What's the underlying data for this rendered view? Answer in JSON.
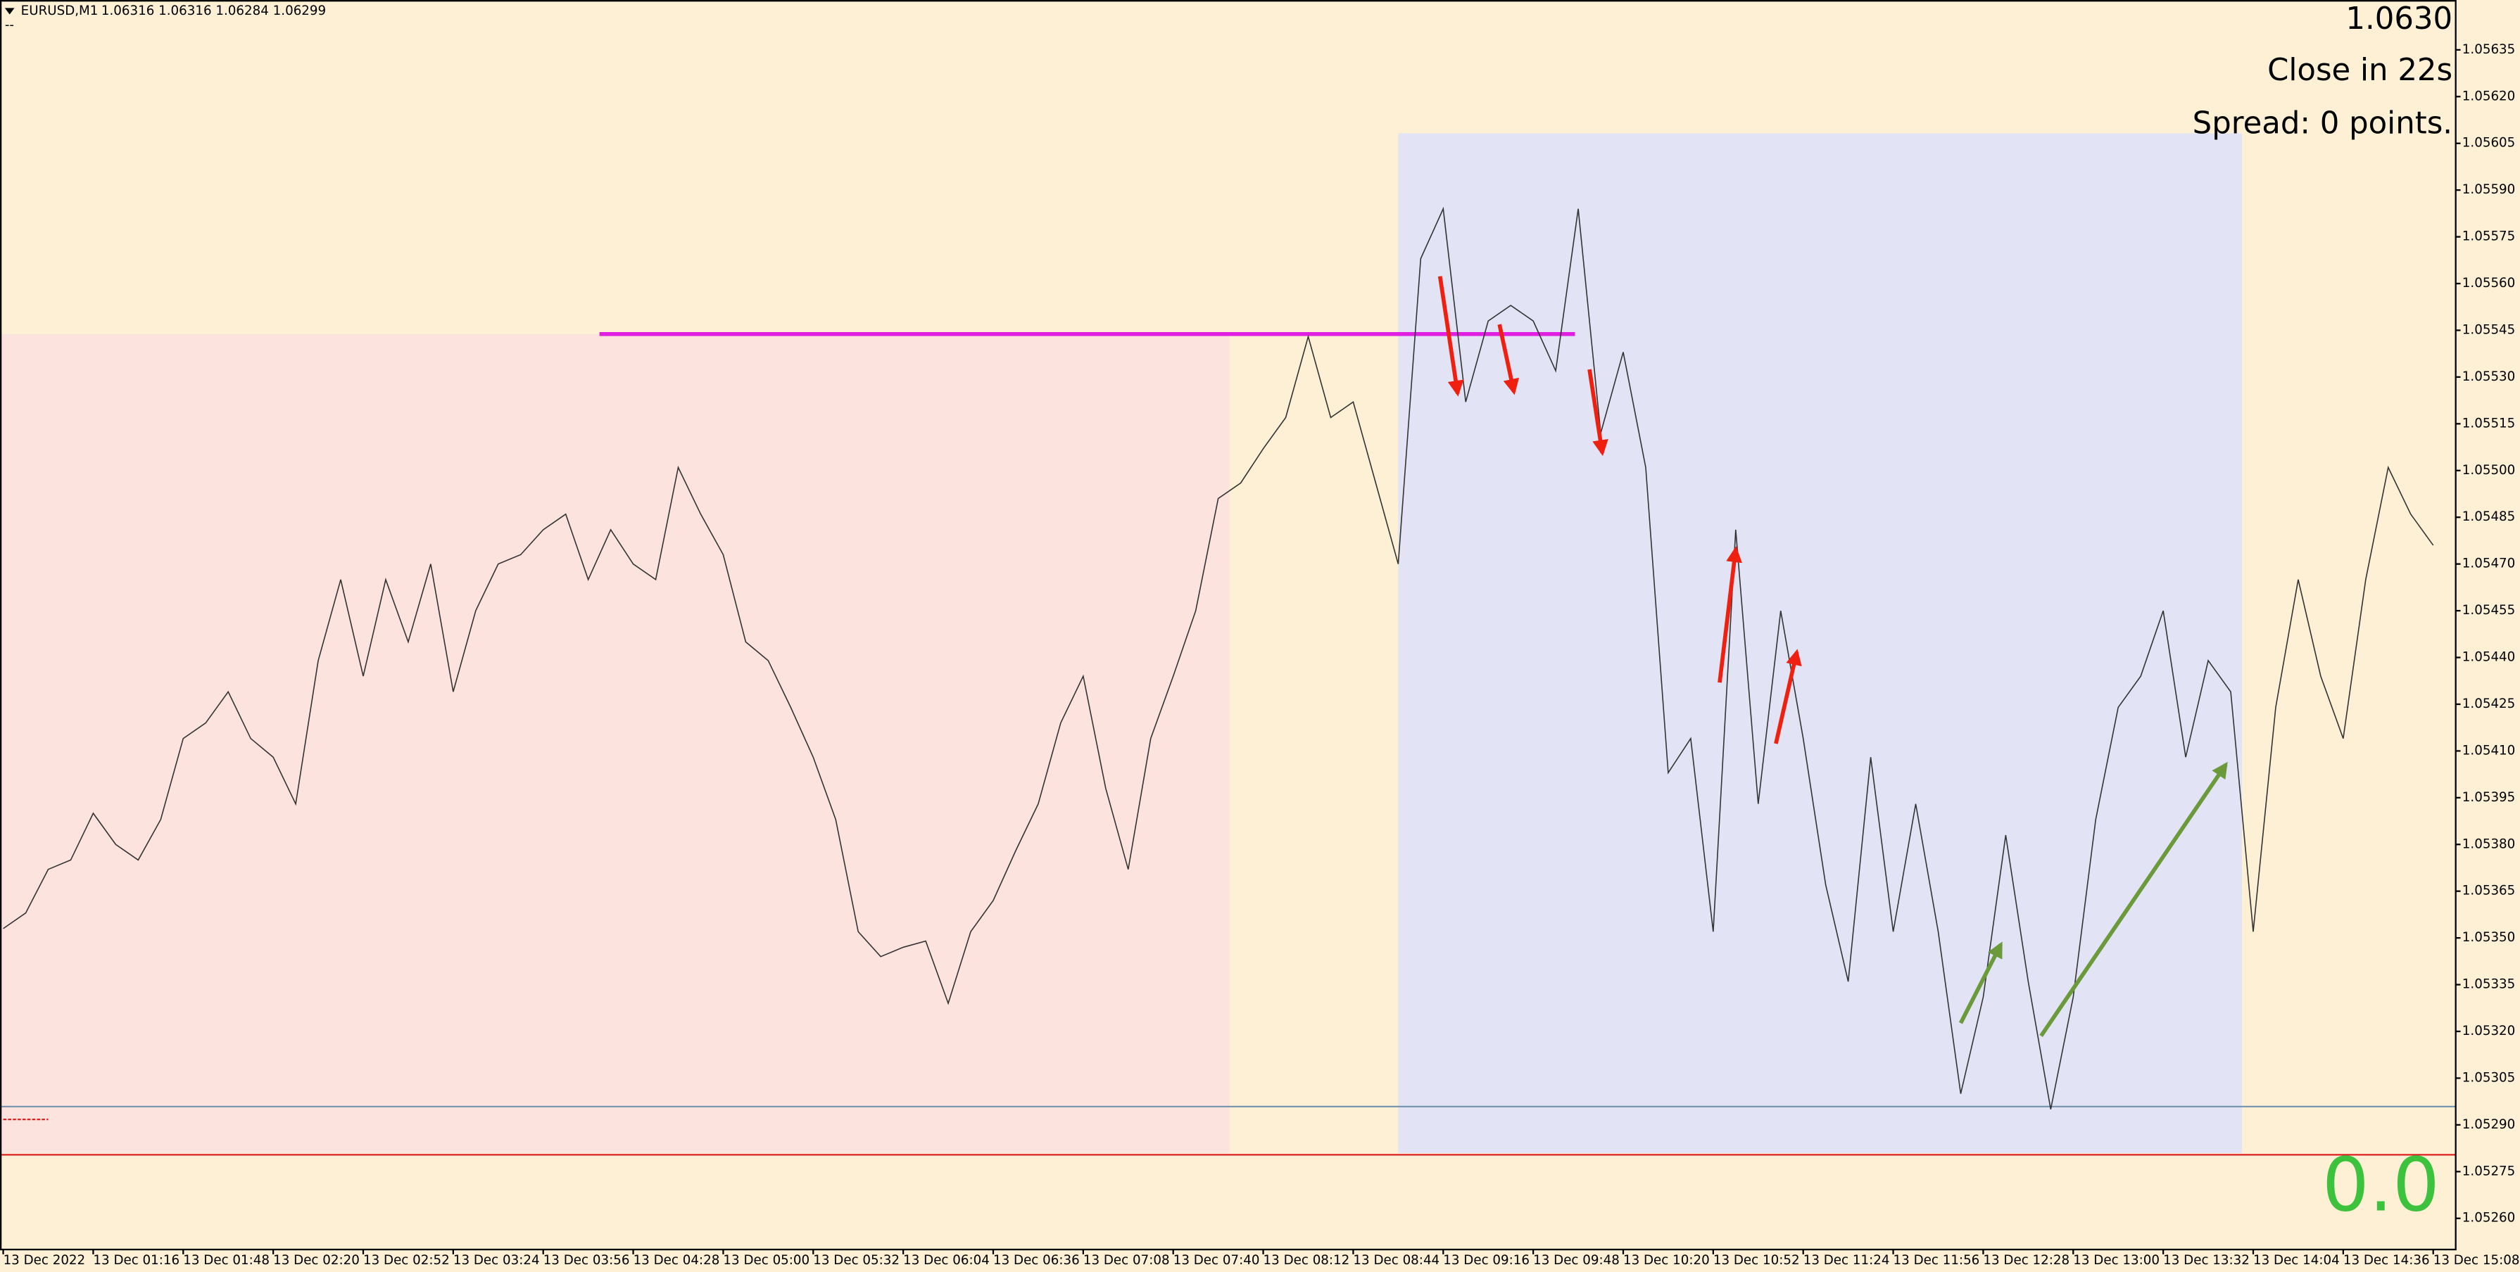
{
  "header": {
    "symbol": "EURUSD,M1",
    "ohlc": "1.06316 1.06316 1.06284 1.06299",
    "marker": "--"
  },
  "info": {
    "price": "1.0630",
    "countdown": "Close in 22s",
    "spread": "Spread: 0 points."
  },
  "profit": "0.0",
  "chart_data": {
    "type": "line",
    "color": "#333333",
    "categories": [
      "13 Dec 2022",
      null,
      null,
      null,
      "13 Dec 01:16",
      null,
      null,
      null,
      "13 Dec 01:48",
      null,
      null,
      null,
      "13 Dec 02:20",
      null,
      null,
      null,
      "13 Dec 02:52",
      null,
      null,
      null,
      "13 Dec 03:24",
      null,
      null,
      null,
      "13 Dec 03:56",
      null,
      null,
      null,
      "13 Dec 04:28",
      null,
      null,
      null,
      "13 Dec 05:00",
      null,
      null,
      null,
      "13 Dec 05:32",
      null,
      null,
      null,
      "13 Dec 06:04",
      null,
      null,
      null,
      "13 Dec 06:36",
      null,
      null,
      null,
      "13 Dec 07:08",
      null,
      null,
      null,
      "13 Dec 07:40",
      null,
      null,
      null,
      "13 Dec 08:12",
      null,
      null,
      null,
      "13 Dec 08:44",
      null,
      null,
      null,
      "13 Dec 09:16",
      null,
      null,
      null,
      "13 Dec 09:48",
      null,
      null,
      null,
      "13 Dec 10:20",
      null,
      null,
      null,
      "13 Dec 10:52",
      null,
      null,
      null,
      "13 Dec 11:24",
      null,
      null,
      null,
      "13 Dec 11:56",
      null,
      null,
      null,
      "13 Dec 12:28",
      null,
      null,
      null,
      "13 Dec 13:00",
      null,
      null,
      null,
      "13 Dec 13:32",
      null,
      null,
      null,
      "13 Dec 14:04",
      null,
      null,
      null,
      "13 Dec 14:36",
      null,
      null,
      null,
      "13 Dec 15:08"
    ],
    "values": [
      1.05353,
      1.05358,
      1.05372,
      1.05375,
      1.0539,
      1.0538,
      1.05375,
      1.05388,
      1.05414,
      1.05419,
      1.05429,
      1.05414,
      1.05408,
      1.05393,
      1.05439,
      1.05465,
      1.05434,
      1.05465,
      1.05445,
      1.0547,
      1.05429,
      1.05455,
      1.0547,
      1.05473,
      1.05481,
      1.05486,
      1.05465,
      1.05481,
      1.0547,
      1.05465,
      1.05501,
      1.05486,
      1.05473,
      1.05445,
      1.05439,
      1.05424,
      1.05408,
      1.05388,
      1.05352,
      1.05344,
      1.05347,
      1.05349,
      1.05329,
      1.05352,
      1.05362,
      1.05378,
      1.05393,
      1.05419,
      1.05434,
      1.05398,
      1.05372,
      1.05414,
      1.05434,
      1.05455,
      1.05491,
      1.05496,
      1.05507,
      1.05517,
      1.05543,
      1.05517,
      1.05522,
      1.05496,
      1.0547,
      1.05568,
      1.05584,
      1.05522,
      1.05548,
      1.05553,
      1.05548,
      1.05532,
      1.05584,
      1.05512,
      1.05538,
      1.05501,
      1.05403,
      1.05414,
      1.05352,
      1.05481,
      1.05393,
      1.05455,
      1.05414,
      1.05367,
      1.05336,
      1.05408,
      1.05352,
      1.05393,
      1.05352,
      1.053,
      1.05331,
      1.05383,
      1.05336,
      1.05295,
      1.05331,
      1.05388,
      1.05424,
      1.05434,
      1.05455,
      1.05408,
      1.05439,
      1.05429,
      1.05352,
      1.05424,
      1.05465,
      1.05434,
      1.05414,
      1.05465,
      1.05501,
      1.05486,
      1.05476
    ],
    "ylim": [
      1.0525,
      1.05651
    ],
    "yticks": [
      {
        "value": 1.0526,
        "label": "1.05260"
      },
      1.05275,
      {
        "value": 1.0529,
        "label": "1.05290"
      },
      1.05305,
      {
        "value": 1.0532,
        "label": "1.05320"
      },
      1.05335,
      {
        "value": 1.0535,
        "label": "1.05350"
      },
      1.05365,
      {
        "value": 1.0538,
        "label": "1.05380"
      },
      1.05395,
      {
        "value": 1.0541,
        "label": "1.05410"
      },
      1.05425,
      {
        "value": 1.0544,
        "label": "1.05440"
      },
      1.05455,
      {
        "value": 1.0547,
        "label": "1.05470"
      },
      1.05485,
      {
        "value": 1.055,
        "label": "1.05500"
      },
      1.05515,
      {
        "value": 1.0553,
        "label": "1.05530"
      },
      1.05545,
      {
        "value": 1.0556,
        "label": "1.05560"
      },
      1.05575,
      {
        "value": 1.0559,
        "label": "1.05590"
      },
      1.05605,
      {
        "value": 1.0562,
        "label": "1.05620"
      },
      1.05635
    ]
  }
}
